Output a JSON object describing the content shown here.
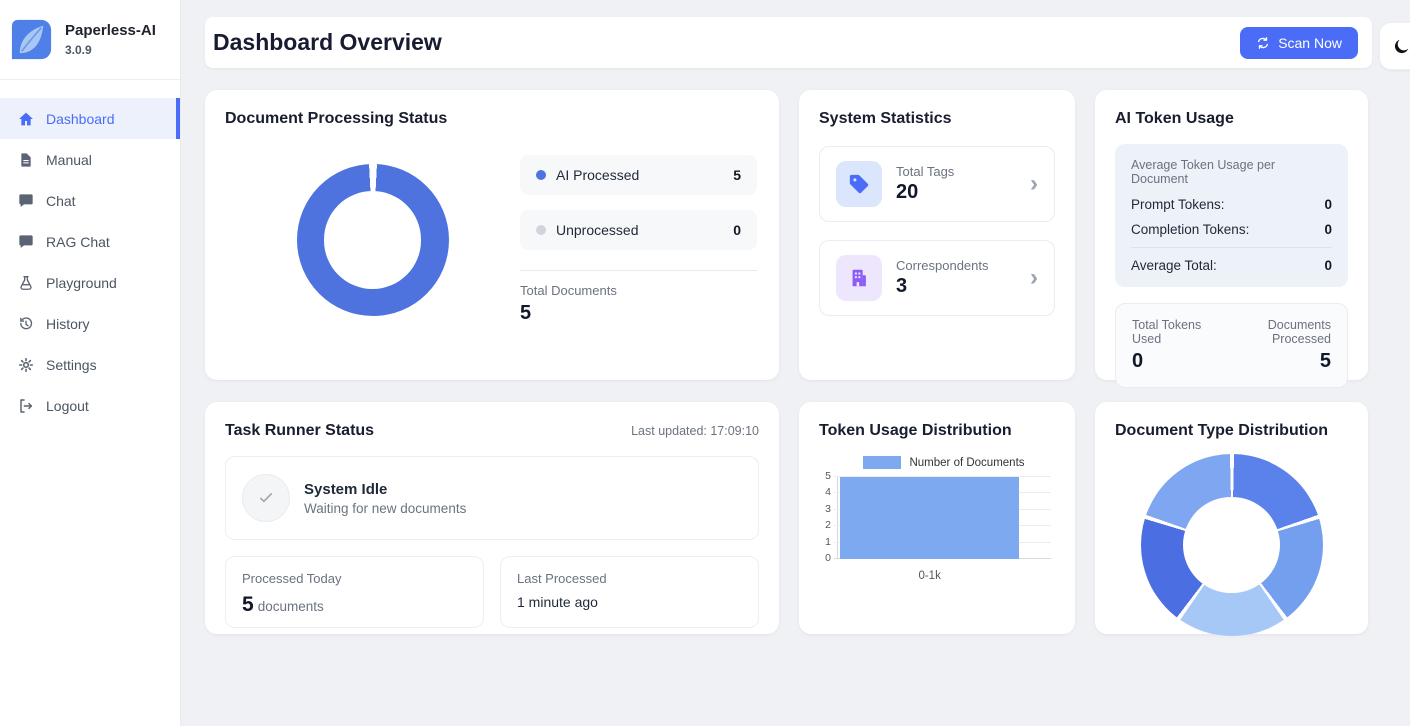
{
  "app": {
    "name": "Paperless-AI",
    "version": "3.0.9"
  },
  "sidebar": {
    "items": [
      {
        "label": "Dashboard",
        "icon": "home-icon",
        "active": true
      },
      {
        "label": "Manual",
        "icon": "document-icon",
        "active": false
      },
      {
        "label": "Chat",
        "icon": "chat-icon",
        "active": false
      },
      {
        "label": "RAG Chat",
        "icon": "chat-icon",
        "active": false
      },
      {
        "label": "Playground",
        "icon": "flask-icon",
        "active": false
      },
      {
        "label": "History",
        "icon": "history-icon",
        "active": false
      },
      {
        "label": "Settings",
        "icon": "gear-icon",
        "active": false
      },
      {
        "label": "Logout",
        "icon": "logout-icon",
        "active": false
      }
    ]
  },
  "header": {
    "title": "Dashboard Overview",
    "scan_button_label": "Scan Now",
    "theme_icon": "moon-icon"
  },
  "colors": {
    "accent": "#4a6cf7",
    "processing_blue": "#4e73df",
    "unprocessed_gray": "#d1d5db",
    "bar_blue": "#7da9f1",
    "tag_icon_blue": "#4a6cf8",
    "tag_icon_bg": "#dbe6fd",
    "correspondent_icon_purple": "#8b5cf6",
    "correspondent_icon_bg": "#ede6fc"
  },
  "processing_card": {
    "title": "Document Processing Status",
    "legend": [
      {
        "label": "AI Processed",
        "value": "5"
      },
      {
        "label": "Unprocessed",
        "value": "0"
      }
    ],
    "total_label": "Total Documents",
    "total_value": "5"
  },
  "stats_card": {
    "title": "System Statistics",
    "items": [
      {
        "label": "Total Tags",
        "value": "20",
        "icon": "tag-icon"
      },
      {
        "label": "Correspondents",
        "value": "3",
        "icon": "building-icon"
      }
    ]
  },
  "token_card": {
    "title": "AI Token Usage",
    "average_section_title": "Average Token Usage per Document",
    "rows": [
      {
        "label": "Prompt Tokens:",
        "value": "0"
      },
      {
        "label": "Completion Tokens:",
        "value": "0"
      }
    ],
    "average_row": {
      "label": "Average Total:",
      "value": "0"
    },
    "totals": [
      {
        "label": "Total Tokens Used",
        "value": "0"
      },
      {
        "label": "Documents Processed",
        "value": "5"
      }
    ]
  },
  "task_card": {
    "title": "Task Runner Status",
    "last_updated": "Last updated: 17:09:10",
    "status_title": "System Idle",
    "status_subtitle": "Waiting for new documents",
    "boxes": [
      {
        "label": "Processed Today",
        "value": "5",
        "suffix": "documents"
      },
      {
        "label": "Last Processed",
        "value": "1 minute ago"
      }
    ]
  },
  "chart_data": [
    {
      "id": "document_processing_status",
      "type": "pie",
      "donut": true,
      "title": "Document Processing Status",
      "labels": [
        "AI Processed",
        "Unprocessed"
      ],
      "values": [
        5,
        0
      ],
      "colors": [
        "#4e73df",
        "#d1d5db"
      ],
      "total_documents": 5
    },
    {
      "id": "token_usage_distribution",
      "type": "bar",
      "title": "Token Usage Distribution",
      "series_label": "Number of Documents",
      "categories": [
        "0-1k"
      ],
      "values": [
        5
      ],
      "bar_color": "#7da9f1",
      "xlabel": "",
      "ylabel": "",
      "ylim": [
        0,
        5
      ],
      "yticks": [
        0,
        1,
        2,
        3,
        4,
        5
      ],
      "grid": true,
      "legend_position": "top"
    },
    {
      "id": "document_type_distribution",
      "type": "pie",
      "donut": true,
      "title": "Document Type Distribution",
      "values": [
        1,
        1,
        1,
        1,
        1
      ],
      "colors": [
        "#5b82ea",
        "#739fee",
        "#a6c8f7",
        "#4c6ee3",
        "#7fa6f0"
      ],
      "legend_position": "none"
    }
  ]
}
